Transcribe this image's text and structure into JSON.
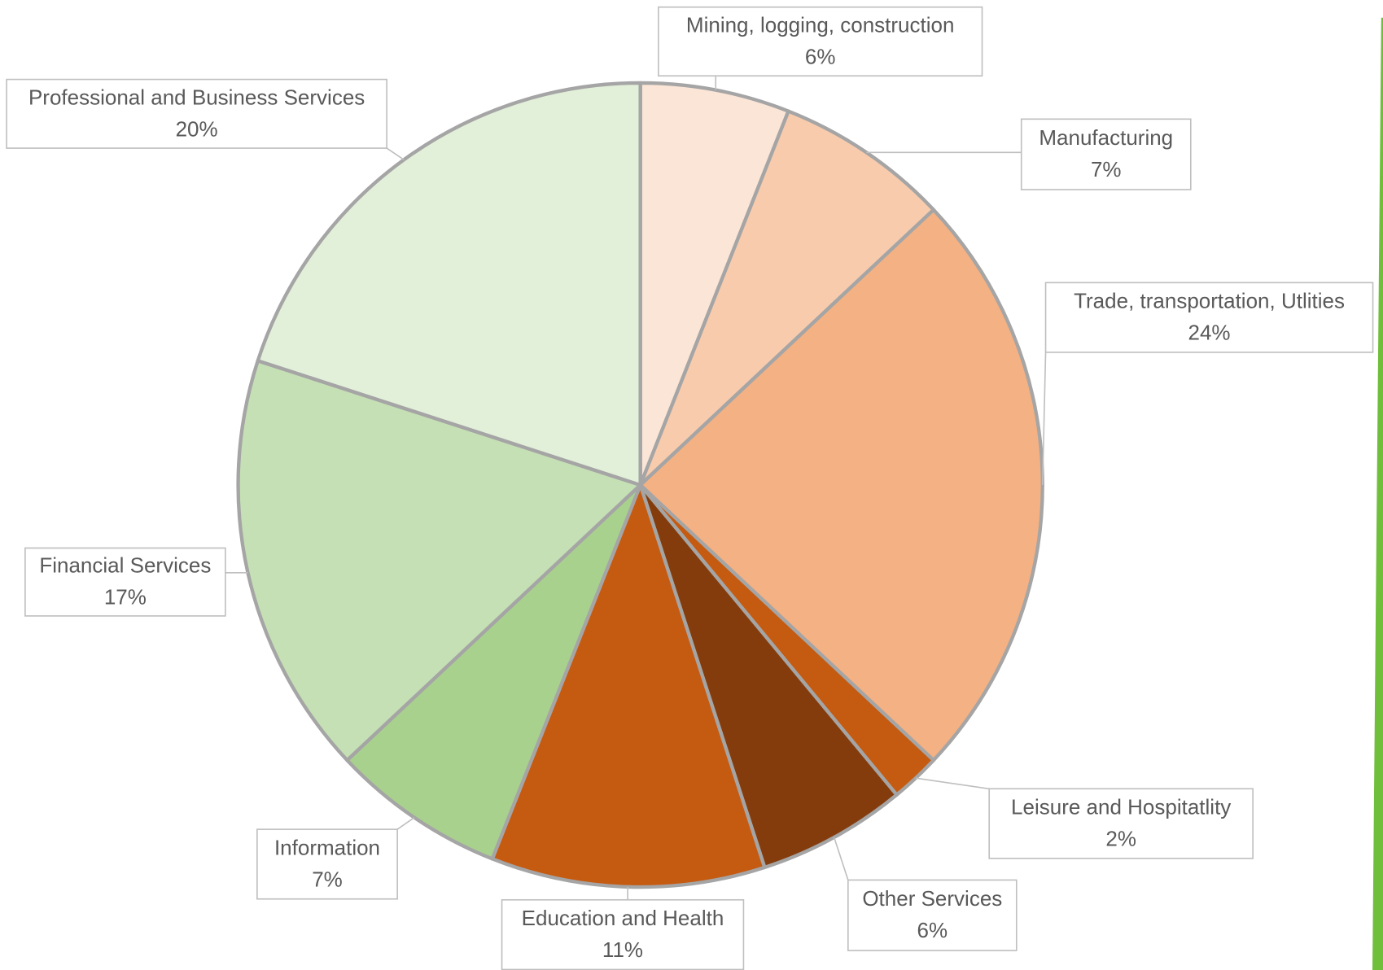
{
  "chart_data": {
    "type": "pie",
    "categories": [
      "Mining, logging, construction",
      "Manufacturing",
      "Trade, transportation, Utlities",
      "Leisure and Hospitatlity",
      "Other Services",
      "Education and Health",
      "Information",
      "Financial Services",
      "Professional and Business Services"
    ],
    "values": [
      6,
      7,
      24,
      2,
      6,
      11,
      7,
      17,
      20
    ],
    "value_labels": [
      "6%",
      "7%",
      "24%",
      "2%",
      "6%",
      "11%",
      "7%",
      "17%",
      "20%"
    ],
    "colors": [
      "#fbe5d6",
      "#f8cbad",
      "#f4b183",
      "#c55a11",
      "#843c0c",
      "#c55a11",
      "#a9d18e",
      "#c5e0b4",
      "#e2efd9"
    ]
  }
}
